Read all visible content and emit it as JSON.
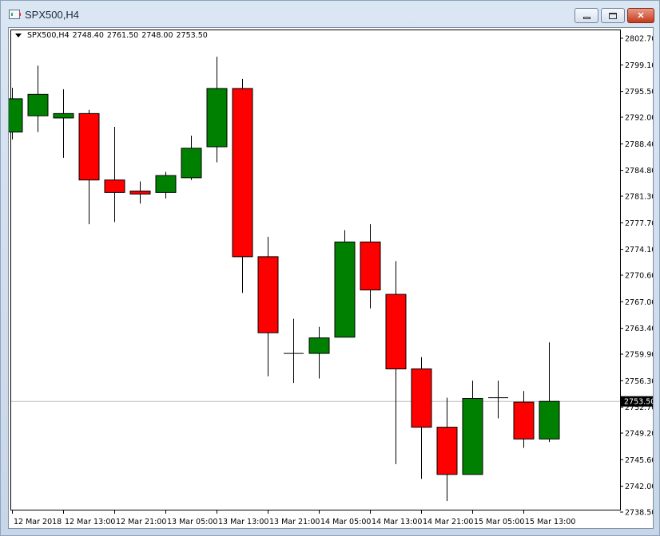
{
  "window": {
    "title": "SPX500,H4",
    "icon": "chart-window-icon",
    "controls": {
      "minimize": "minimize-icon",
      "maximize": "maximize-icon",
      "close_label": "✕"
    }
  },
  "chart_info": {
    "symbol": "SPX500,H4",
    "open": "2748.40",
    "high": "2761.50",
    "low": "2748.00",
    "close": "2753.50"
  },
  "colors": {
    "bull": "#008000",
    "bear": "#ff0000",
    "wick": "#000000",
    "background": "#ffffff",
    "current_line": "#c0c0c0"
  },
  "chart_data": {
    "type": "candlestick",
    "title": "SPX500,H4",
    "ylim": [
      2737.0,
      2804.0
    ],
    "y_ticks": [
      "2802.70",
      "2799.10",
      "2795.50",
      "2792.00",
      "2788.40",
      "2784.80",
      "2781.30",
      "2777.70",
      "2774.10",
      "2770.60",
      "2767.00",
      "2763.40",
      "2759.90",
      "2756.30",
      "2752.70",
      "2749.20",
      "2745.60",
      "2742.00",
      "2738.50"
    ],
    "x_labels": [
      "12 Mar 2018",
      "12 Mar 13:00",
      "12 Mar 21:00",
      "13 Mar 05:00",
      "13 Mar 13:00",
      "13 Mar 21:00",
      "14 Mar 05:00",
      "14 Mar 13:00",
      "14 Mar 21:00",
      "15 Mar 05:00",
      "15 Mar 13:00"
    ],
    "current_price": "2753.50",
    "candles": [
      {
        "o": 2790.0,
        "h": 2796.0,
        "l": 2789.0,
        "c": 2794.5
      },
      {
        "o": 2792.2,
        "h": 2799.0,
        "l": 2790.0,
        "c": 2795.1
      },
      {
        "o": 2791.9,
        "h": 2795.8,
        "l": 2786.5,
        "c": 2792.5
      },
      {
        "o": 2792.5,
        "h": 2793.0,
        "l": 2777.5,
        "c": 2783.5
      },
      {
        "o": 2783.5,
        "h": 2790.7,
        "l": 2777.8,
        "c": 2781.8
      },
      {
        "o": 2782.0,
        "h": 2783.3,
        "l": 2780.3,
        "c": 2781.6
      },
      {
        "o": 2781.8,
        "h": 2784.6,
        "l": 2781.0,
        "c": 2784.1
      },
      {
        "o": 2783.8,
        "h": 2789.5,
        "l": 2783.5,
        "c": 2787.8
      },
      {
        "o": 2788.0,
        "h": 2800.2,
        "l": 2785.9,
        "c": 2795.9
      },
      {
        "o": 2795.9,
        "h": 2797.2,
        "l": 2768.2,
        "c": 2773.1
      },
      {
        "o": 2773.1,
        "h": 2775.8,
        "l": 2756.9,
        "c": 2762.8
      },
      {
        "o": 2760.0,
        "h": 2764.7,
        "l": 2756.0,
        "c": 2760.0
      },
      {
        "o": 2760.0,
        "h": 2763.6,
        "l": 2756.6,
        "c": 2762.1
      },
      {
        "o": 2762.2,
        "h": 2776.7,
        "l": 2762.2,
        "c": 2775.1
      },
      {
        "o": 2775.1,
        "h": 2777.5,
        "l": 2766.1,
        "c": 2768.6
      },
      {
        "o": 2768.0,
        "h": 2772.5,
        "l": 2745.0,
        "c": 2757.9
      },
      {
        "o": 2757.9,
        "h": 2759.5,
        "l": 2743.0,
        "c": 2750.0
      },
      {
        "o": 2750.0,
        "h": 2754.0,
        "l": 2740.0,
        "c": 2743.6
      },
      {
        "o": 2743.6,
        "h": 2756.3,
        "l": 2743.6,
        "c": 2753.9
      },
      {
        "o": 2754.0,
        "h": 2756.3,
        "l": 2751.2,
        "c": 2754.0
      },
      {
        "o": 2753.4,
        "h": 2754.9,
        "l": 2747.2,
        "c": 2748.4
      },
      {
        "o": 2748.4,
        "h": 2761.5,
        "l": 2748.0,
        "c": 2753.5
      }
    ]
  }
}
